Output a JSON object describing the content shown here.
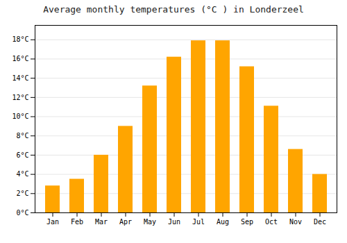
{
  "chart_data": {
    "type": "bar",
    "title": "Average monthly temperatures (°C ) in Londerzeel",
    "categories": [
      "Jan",
      "Feb",
      "Mar",
      "Apr",
      "May",
      "Jun",
      "Jul",
      "Aug",
      "Sep",
      "Oct",
      "Nov",
      "Dec"
    ],
    "values": [
      2.8,
      3.5,
      6.0,
      9.0,
      13.2,
      16.2,
      17.9,
      17.9,
      15.2,
      11.1,
      6.6,
      4.0
    ],
    "color": "#FFA500",
    "ylim": [
      0,
      19.5
    ],
    "yticks": [
      {
        "value": 0,
        "label": "0°C"
      },
      {
        "value": 2,
        "label": "2°C"
      },
      {
        "value": 4,
        "label": "4°C"
      },
      {
        "value": 6,
        "label": "6°C"
      },
      {
        "value": 8,
        "label": "8°C"
      },
      {
        "value": 10,
        "label": "10°C"
      },
      {
        "value": 12,
        "label": "12°C"
      },
      {
        "value": 14,
        "label": "14°C"
      },
      {
        "value": 16,
        "label": "16°C"
      },
      {
        "value": 18,
        "label": "18°C"
      }
    ],
    "grid": true
  }
}
